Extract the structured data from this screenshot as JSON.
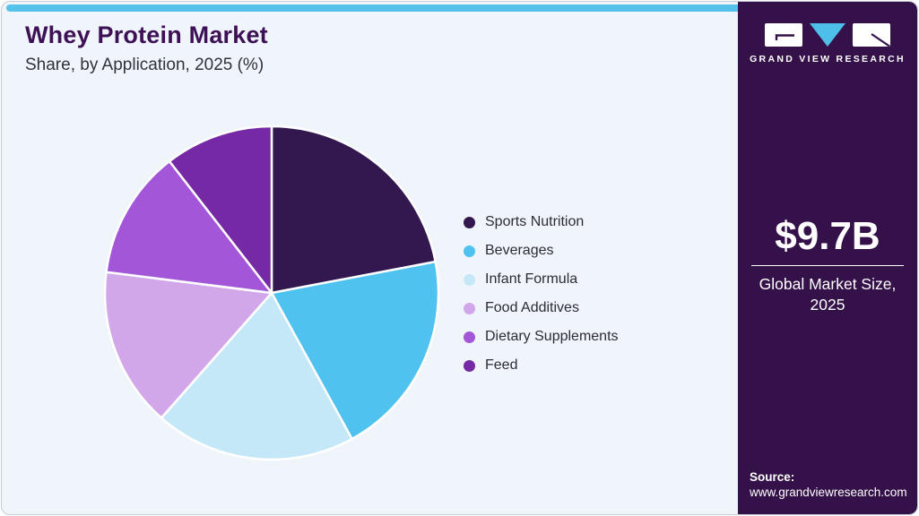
{
  "page": {
    "background": "#eff5fa",
    "accent_bar_color": "#55c2ec",
    "border_color": "#c6cfd8"
  },
  "header": {
    "title": "Whey Protein Market",
    "subtitle": "Share, by Application, 2025 (%)",
    "title_color": "#3e1156"
  },
  "chart_data": {
    "type": "pie",
    "title": "Whey Protein Market Share, by Application, 2025 (%)",
    "categories": [
      "Sports Nutrition",
      "Beverages",
      "Infant Formula",
      "Food Additives",
      "Dietary Supplements",
      "Feed"
    ],
    "values": [
      22,
      20,
      19.5,
      15.5,
      12.5,
      10.5
    ],
    "unit": "%",
    "colors": [
      "#331850",
      "#50c2f0",
      "#c5e8f8",
      "#d1a7ea",
      "#a356d8",
      "#7629a4"
    ],
    "start_angle_deg": 0,
    "direction": "clockwise",
    "legend_position": "right",
    "slice_border_color": "#ffffff",
    "data_labels_shown": false
  },
  "sidebar": {
    "background": "#351149",
    "logo": {
      "brand": "GRAND VIEW RESEARCH",
      "triangle_color": "#4dbfe9",
      "glyph_color": "#351149"
    },
    "market_size": {
      "value": "$9.7B",
      "label": "Global Market Size, 2025"
    },
    "source": {
      "label": "Source:",
      "url": "www.grandviewresearch.com"
    }
  }
}
